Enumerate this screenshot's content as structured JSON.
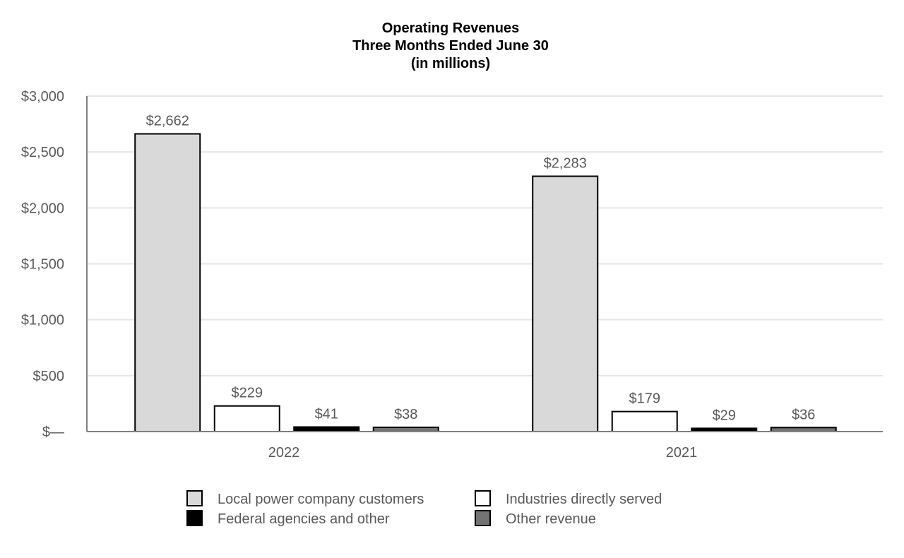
{
  "chart_data": {
    "type": "bar",
    "title": [
      "Operating Revenues",
      "Three Months Ended June 30",
      "(in millions)"
    ],
    "categories": [
      "2022",
      "2021"
    ],
    "series": [
      {
        "name": "Local power company customers",
        "values": [
          2662,
          2283
        ],
        "labels": [
          "$2,662",
          "$2,283"
        ],
        "color": "#d9d9d9"
      },
      {
        "name": "Industries directly served",
        "values": [
          229,
          179
        ],
        "labels": [
          "$229",
          "$179"
        ],
        "color": "#ffffff"
      },
      {
        "name": "Federal agencies and other",
        "values": [
          41,
          29
        ],
        "labels": [
          "$41",
          "$29"
        ],
        "color": "#000000"
      },
      {
        "name": "Other revenue",
        "values": [
          38,
          36
        ],
        "labels": [
          "$38",
          "$36"
        ],
        "color": "#737373"
      }
    ],
    "ylim": [
      0,
      3000
    ],
    "yticks": [
      0,
      500,
      1000,
      1500,
      2000,
      2500,
      3000
    ],
    "ytick_labels": [
      "$—",
      "$500",
      "$1,000",
      "$1,500",
      "$2,000",
      "$2,500",
      "$3,000"
    ],
    "xlabel": "",
    "ylabel": "",
    "grid": true,
    "legend_position": "bottom",
    "colors": {
      "gridline": "#e6e6e6",
      "axis": "#7f7f7f",
      "bar_border": "#000000",
      "text": "#595959",
      "title": "#000000"
    }
  }
}
